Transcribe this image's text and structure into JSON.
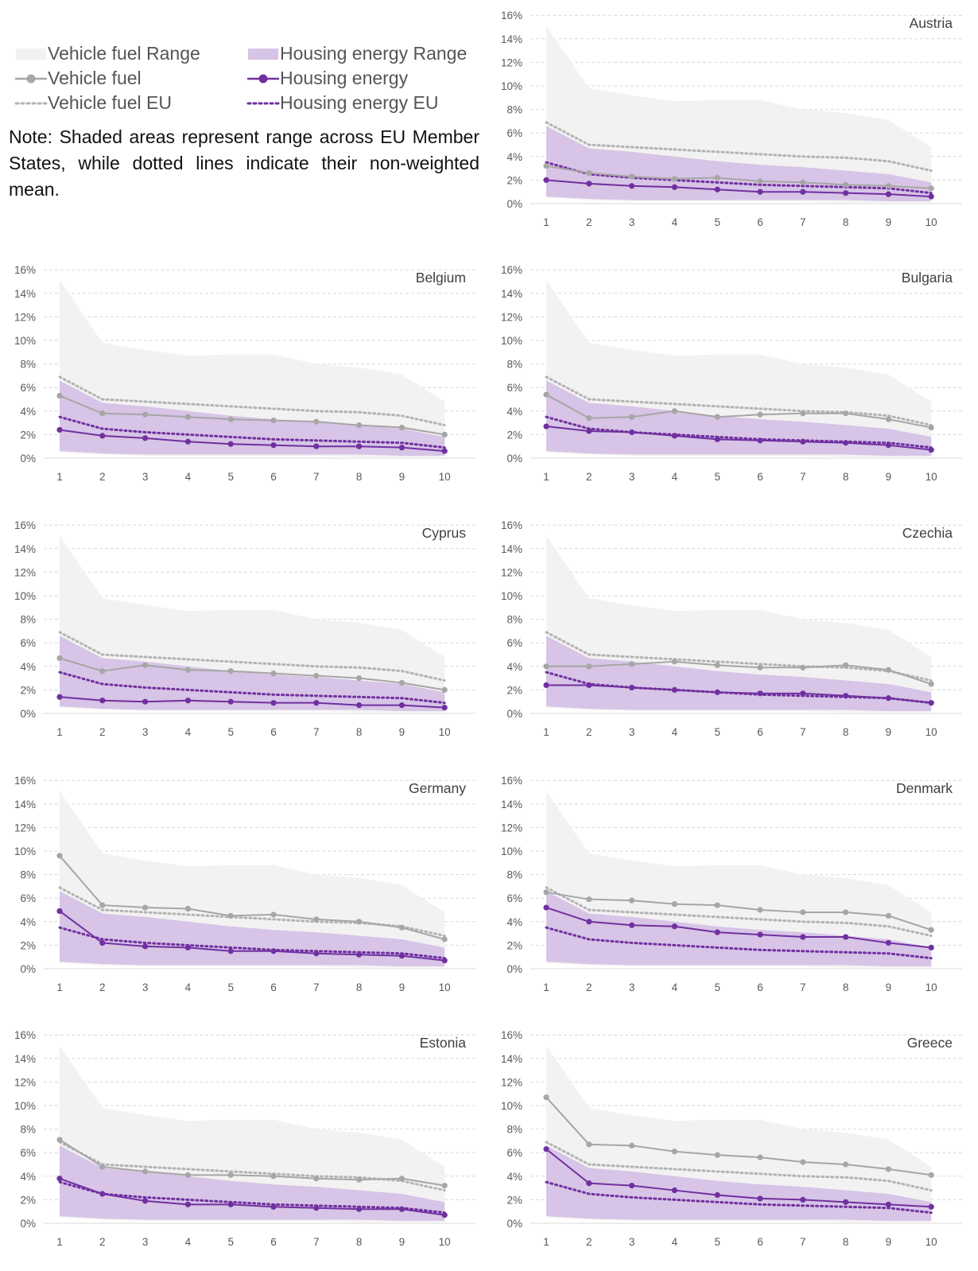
{
  "legend": {
    "vehicle_range": "Vehicle fuel Range",
    "housing_range": "Housing energy Range",
    "vehicle_fuel": "Vehicle fuel",
    "housing_energy": "Housing energy",
    "vehicle_eu": "Vehicle fuel EU",
    "housing_eu": "Housing energy EU"
  },
  "note": "Note: Shaded areas represent range across EU Member States, while dotted lines indicate their non-weighted mean.",
  "colors": {
    "vehicle_range_fill": "#f2f2f2",
    "housing_range_fill": "#d7c4e6",
    "vehicle_line": "#a6a6a6",
    "housing_line": "#7030a0",
    "vehicle_eu_line": "#b3b3b3",
    "housing_eu_line": "#7030a0",
    "grid": "#d9d9d9"
  },
  "chart_common": {
    "type": "area+line",
    "x": [
      1,
      2,
      3,
      4,
      5,
      6,
      7,
      8,
      9,
      10
    ],
    "y_ticks": [
      "0%",
      "2%",
      "4%",
      "6%",
      "8%",
      "10%",
      "12%",
      "14%",
      "16%"
    ],
    "ylim": [
      0,
      16
    ],
    "grid": "dashed horizontal",
    "vehicle_range_min": [
      0.5,
      0.3,
      0.2,
      0.2,
      0.2,
      0.2,
      0.2,
      0.1,
      0.1,
      0.1
    ],
    "vehicle_range_max": [
      15.1,
      9.8,
      9.2,
      8.7,
      8.8,
      8.8,
      8.0,
      7.7,
      7.1,
      4.8
    ],
    "housing_range_min": [
      0.6,
      0.4,
      0.3,
      0.3,
      0.3,
      0.3,
      0.3,
      0.3,
      0.2,
      0.2
    ],
    "housing_range_max": [
      6.6,
      4.7,
      4.4,
      4.0,
      3.6,
      3.3,
      3.1,
      2.8,
      2.5,
      1.8
    ],
    "vehicle_eu": [
      6.9,
      5.0,
      4.8,
      4.6,
      4.4,
      4.2,
      4.0,
      3.9,
      3.6,
      2.8
    ],
    "housing_eu": [
      3.5,
      2.5,
      2.2,
      2.0,
      1.8,
      1.6,
      1.5,
      1.4,
      1.3,
      0.9
    ]
  },
  "chart_data": [
    {
      "title": "Austria",
      "vehicle_fuel": [
        3.2,
        2.6,
        2.3,
        2.1,
        2.2,
        1.9,
        1.8,
        1.6,
        1.5,
        1.3
      ],
      "housing_energy": [
        2.0,
        1.7,
        1.5,
        1.4,
        1.2,
        1.0,
        1.0,
        0.9,
        0.8,
        0.6
      ]
    },
    {
      "title": "Belgium",
      "vehicle_fuel": [
        5.3,
        3.8,
        3.7,
        3.5,
        3.3,
        3.2,
        3.1,
        2.8,
        2.6,
        2.0
      ],
      "housing_energy": [
        2.4,
        1.9,
        1.7,
        1.4,
        1.2,
        1.1,
        1.0,
        1.0,
        0.9,
        0.6
      ]
    },
    {
      "title": "Bulgaria",
      "vehicle_fuel": [
        5.4,
        3.4,
        3.5,
        4.0,
        3.5,
        3.7,
        3.8,
        3.8,
        3.3,
        2.6
      ],
      "housing_energy": [
        2.7,
        2.3,
        2.2,
        1.9,
        1.6,
        1.5,
        1.4,
        1.3,
        1.1,
        0.7
      ]
    },
    {
      "title": "Cyprus",
      "vehicle_fuel": [
        4.7,
        3.6,
        4.1,
        3.7,
        3.6,
        3.4,
        3.2,
        3.0,
        2.6,
        2.0
      ],
      "housing_energy": [
        1.4,
        1.1,
        1.0,
        1.1,
        1.0,
        0.9,
        0.9,
        0.7,
        0.7,
        0.5
      ]
    },
    {
      "title": "Czechia",
      "vehicle_fuel": [
        4.0,
        4.0,
        4.2,
        4.4,
        4.1,
        3.9,
        3.9,
        4.1,
        3.7,
        2.5
      ],
      "housing_energy": [
        2.4,
        2.4,
        2.2,
        2.0,
        1.8,
        1.7,
        1.7,
        1.5,
        1.3,
        0.9
      ]
    },
    {
      "title": "Germany",
      "vehicle_fuel": [
        9.6,
        5.4,
        5.2,
        5.1,
        4.5,
        4.6,
        4.2,
        4.0,
        3.5,
        2.5
      ],
      "housing_energy": [
        4.9,
        2.2,
        1.9,
        1.8,
        1.5,
        1.5,
        1.3,
        1.2,
        1.1,
        0.7
      ]
    },
    {
      "title": "Denmark",
      "vehicle_fuel": [
        6.5,
        5.9,
        5.8,
        5.5,
        5.4,
        5.0,
        4.8,
        4.8,
        4.5,
        3.3
      ],
      "housing_energy": [
        5.2,
        4.0,
        3.7,
        3.6,
        3.1,
        2.9,
        2.7,
        2.7,
        2.2,
        1.8
      ]
    },
    {
      "title": "Estonia",
      "vehicle_fuel": [
        7.1,
        4.8,
        4.4,
        4.1,
        4.1,
        4.0,
        3.8,
        3.7,
        3.8,
        3.2
      ],
      "housing_energy": [
        3.8,
        2.5,
        1.9,
        1.6,
        1.6,
        1.4,
        1.3,
        1.2,
        1.2,
        0.7
      ]
    },
    {
      "title": "Greece",
      "vehicle_fuel": [
        10.7,
        6.7,
        6.6,
        6.1,
        5.8,
        5.6,
        5.2,
        5.0,
        4.6,
        4.1
      ],
      "housing_energy": [
        6.3,
        3.4,
        3.2,
        2.8,
        2.4,
        2.1,
        2.0,
        1.8,
        1.6,
        1.4
      ]
    }
  ]
}
